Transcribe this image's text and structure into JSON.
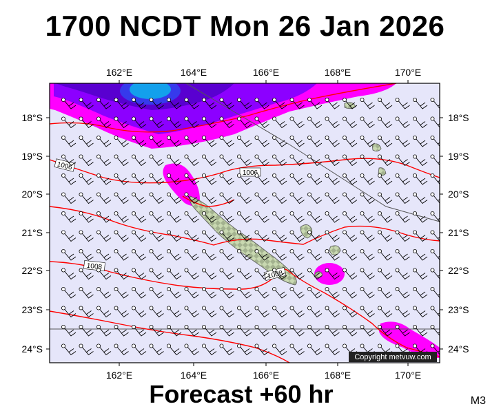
{
  "title": "1700 NCDT Mon 26 Jan 2026",
  "footer": "Forecast +60 hr",
  "model_code": "M3",
  "copyright": "Copyright metvuw.com",
  "map": {
    "lon_ticks": [
      "162°E",
      "164°E",
      "166°E",
      "168°E",
      "170°E"
    ],
    "lat_ticks": [
      "18°S",
      "19°S",
      "20°S",
      "21°S",
      "22°S",
      "23°S",
      "24°S"
    ],
    "isobar_labels": [
      "1006",
      "1006",
      "1008",
      "1008"
    ],
    "colors": {
      "ocean": "#e6e6fa",
      "isobar": "#ff0000",
      "rain_magenta": "#ff00ff",
      "rain_purple": "#8000ff",
      "rain_cyan": "#00ffcc",
      "land": "#c8d8b0"
    }
  }
}
